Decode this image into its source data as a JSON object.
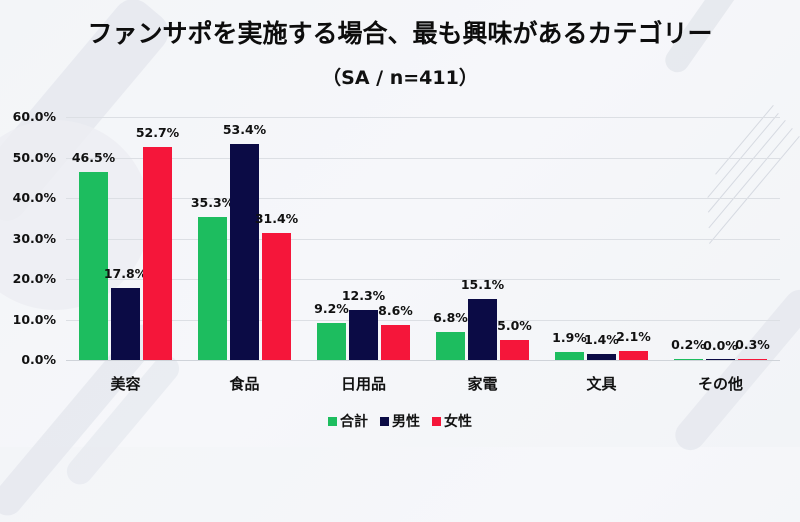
{
  "title": "ファンサポを実施する場合、最も興味があるカテゴリー",
  "subtitle": "（SA / n=411）",
  "colors": {
    "total": "#1dbd5f",
    "male": "#0b0b45",
    "female": "#f5163a"
  },
  "y_ticks": [
    "0.0%",
    "10.0%",
    "20.0%",
    "30.0%",
    "40.0%",
    "50.0%",
    "60.0%"
  ],
  "legend": [
    {
      "label": "合計",
      "color": "#1dbd5f"
    },
    {
      "label": "男性",
      "color": "#0b0b45"
    },
    {
      "label": "女性",
      "color": "#f5163a"
    }
  ],
  "chart_data": {
    "type": "bar",
    "title": "ファンサポを実施する場合、最も興味があるカテゴリー",
    "subtitle": "（SA / n=411）",
    "categories": [
      "美容",
      "食品",
      "日用品",
      "家電",
      "文具",
      "その他"
    ],
    "series": [
      {
        "name": "合計",
        "color": "#1dbd5f",
        "values": [
          46.5,
          35.3,
          9.2,
          6.8,
          1.9,
          0.2
        ]
      },
      {
        "name": "男性",
        "color": "#0b0b45",
        "values": [
          17.8,
          53.4,
          12.3,
          15.1,
          1.4,
          0.0
        ]
      },
      {
        "name": "女性",
        "color": "#f5163a",
        "values": [
          52.7,
          31.4,
          8.6,
          5.0,
          2.1,
          0.3
        ]
      }
    ],
    "value_labels": [
      [
        "46.5%",
        "35.3%",
        "9.2%",
        "6.8%",
        "1.9%",
        "0.2%"
      ],
      [
        "17.8%",
        "53.4%",
        "12.3%",
        "15.1%",
        "1.4%",
        "0.0%"
      ],
      [
        "52.7%",
        "31.4%",
        "8.6%",
        "5.0%",
        "2.1%",
        "0.3%"
      ]
    ],
    "xlabel": "",
    "ylabel": "",
    "ylim": [
      0,
      60
    ],
    "y_tick_labels": [
      "0.0%",
      "10.0%",
      "20.0%",
      "30.0%",
      "40.0%",
      "50.0%",
      "60.0%"
    ],
    "grid": true,
    "legend_position": "bottom"
  }
}
